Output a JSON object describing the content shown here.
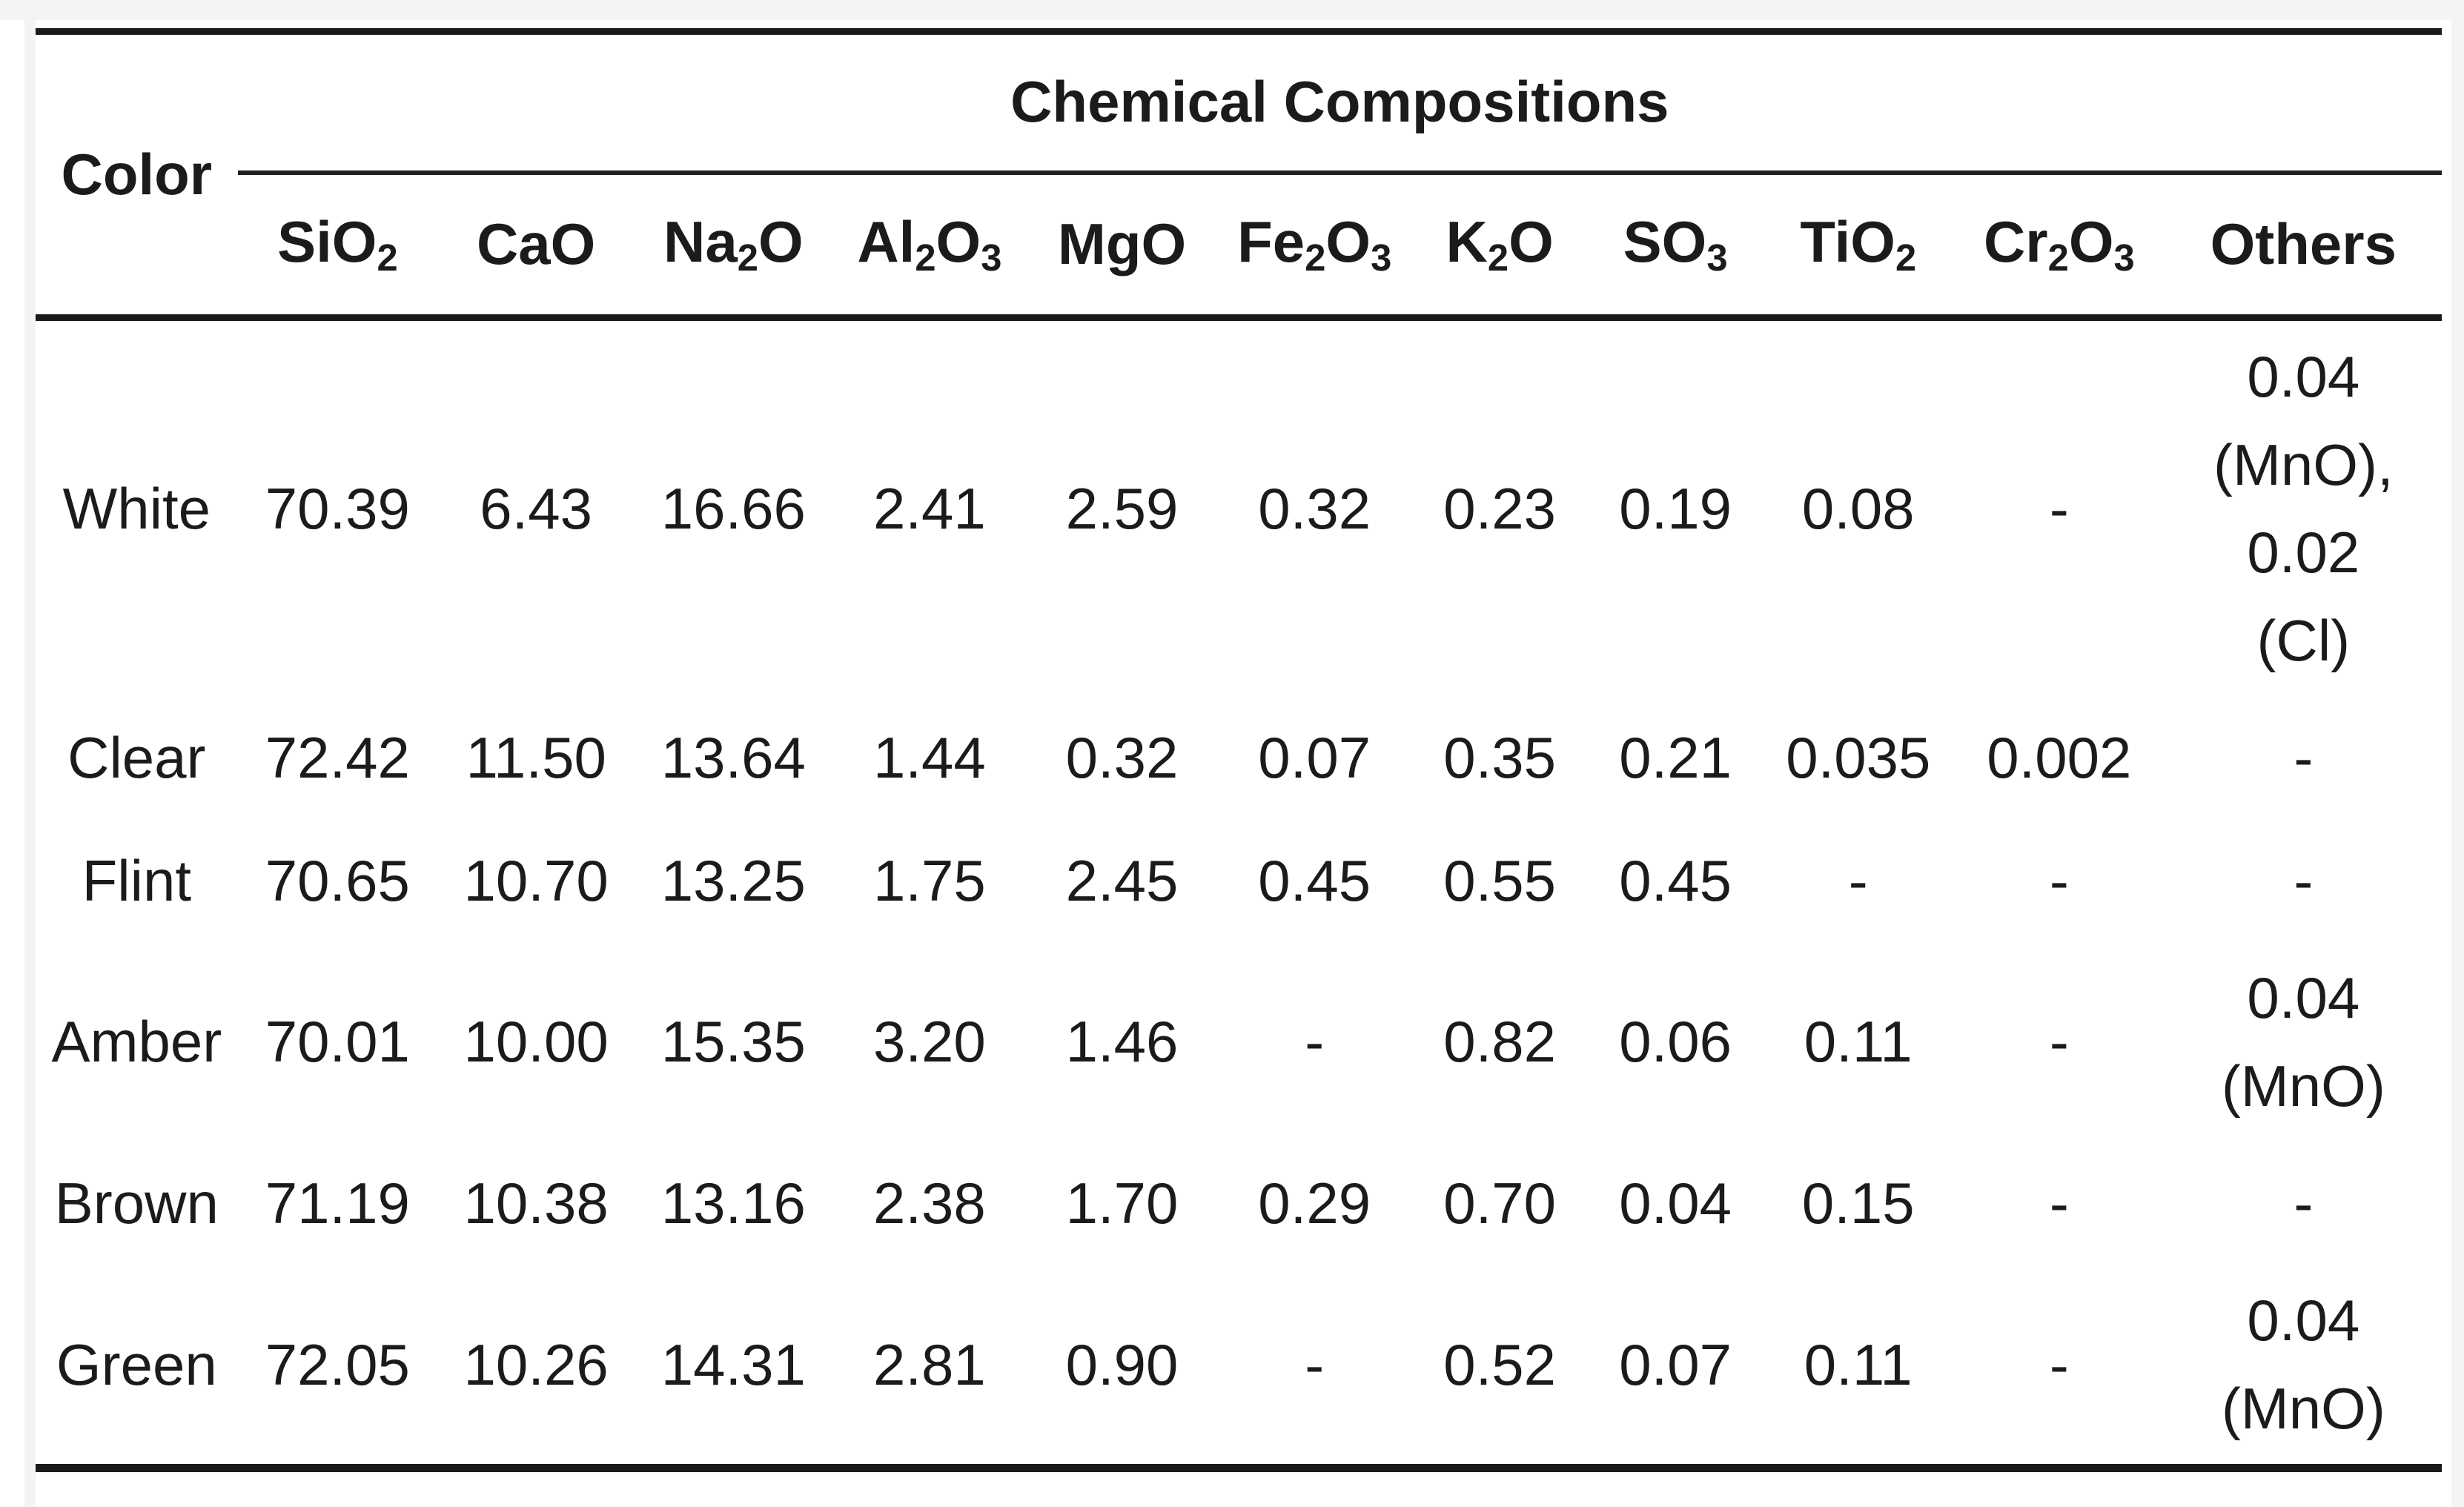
{
  "table": {
    "row_header_label": "Color",
    "group_header": "Chemical Compositions",
    "columns": [
      "SiO_2",
      "CaO",
      "Na_2O",
      "Al_2O_3",
      "MgO",
      "Fe_2O_3",
      "K_2O",
      "SO_3",
      "TiO_2",
      "Cr_2O_3",
      "Others"
    ],
    "rows": [
      {
        "color": "White",
        "values": [
          "70.39",
          "6.43",
          "16.66",
          "2.41",
          "2.59",
          "0.32",
          "0.23",
          "0.19",
          "0.08",
          "-",
          "0.04\n(MnO),\n0.02\n(Cl)"
        ]
      },
      {
        "color": "Clear",
        "values": [
          "72.42",
          "11.50",
          "13.64",
          "1.44",
          "0.32",
          "0.07",
          "0.35",
          "0.21",
          "0.035",
          "0.002",
          "-"
        ]
      },
      {
        "color": "Flint",
        "values": [
          "70.65",
          "10.70",
          "13.25",
          "1.75",
          "2.45",
          "0.45",
          "0.55",
          "0.45",
          "-",
          "-",
          "-"
        ]
      },
      {
        "color": "Amber",
        "values": [
          "70.01",
          "10.00",
          "15.35",
          "3.20",
          "1.46",
          "-",
          "0.82",
          "0.06",
          "0.11",
          "-",
          "0.04\n(MnO)"
        ]
      },
      {
        "color": "Brown",
        "values": [
          "71.19",
          "10.38",
          "13.16",
          "2.38",
          "1.70",
          "0.29",
          "0.70",
          "0.04",
          "0.15",
          "-",
          "-"
        ]
      },
      {
        "color": "Green",
        "values": [
          "72.05",
          "10.26",
          "14.31",
          "2.81",
          "0.90",
          "-",
          "0.52",
          "0.07",
          "0.11",
          "-",
          "0.04\n(MnO)"
        ]
      }
    ],
    "colors_hex": {
      "text": "#1b1b1b",
      "rule": "#1a1a1a",
      "page_gutter": "#f4f4f4",
      "card_background": "#ffffff"
    }
  }
}
